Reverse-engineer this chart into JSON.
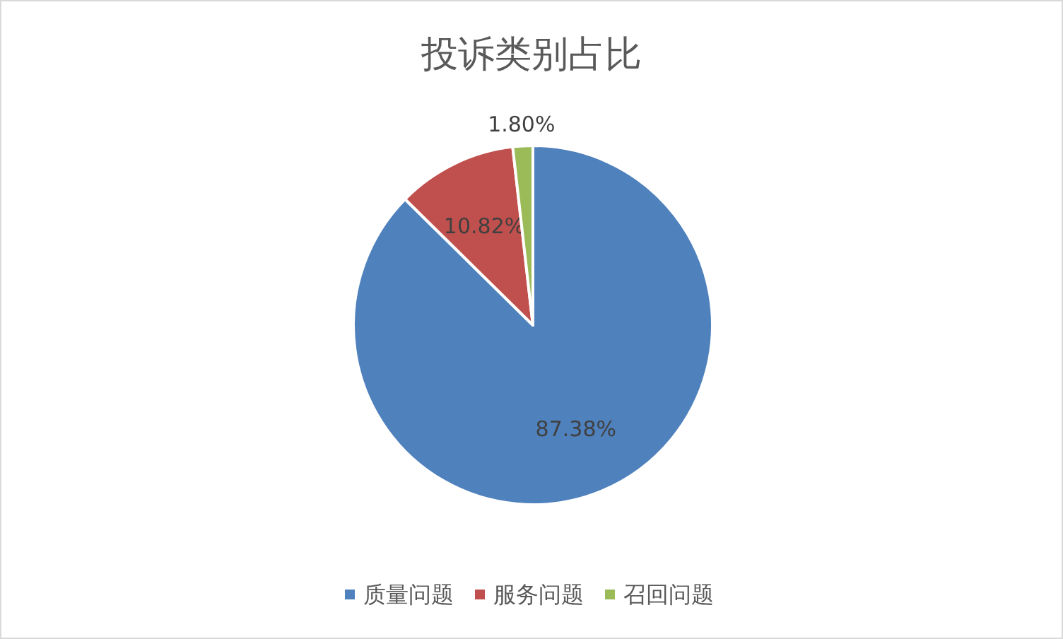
{
  "chart_data": {
    "type": "pie",
    "title": "投诉类别占比",
    "categories": [
      "质量问题",
      "服务问题",
      "召回问题"
    ],
    "values": [
      87.38,
      10.82,
      1.8
    ],
    "colors": [
      "#4f81bd",
      "#c0504d",
      "#9bbb59"
    ],
    "value_labels": [
      "87.38%",
      "10.82%",
      "1.80%"
    ],
    "legend": "bottom"
  }
}
